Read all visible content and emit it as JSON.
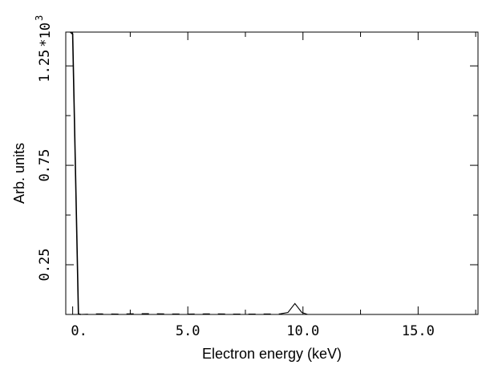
{
  "chart_data": {
    "type": "line",
    "title": "",
    "xlabel": "Electron energy (keV)",
    "ylabel": "Arb. units",
    "y_multiplier_label": "*10",
    "y_multiplier_exponent": "3",
    "xlim": [
      -0.3,
      17.6
    ],
    "ylim": [
      0,
      1.42
    ],
    "x_major_ticks": [
      0,
      5,
      10,
      15
    ],
    "x_tick_labels": [
      "0.",
      "5.0",
      "10.0",
      "15.0"
    ],
    "x_minor_ticks": [
      2.5,
      7.5,
      12.5,
      17.5
    ],
    "y_major_ticks": [
      0.25,
      0.75,
      1.25
    ],
    "y_tick_labels": [
      "0.25",
      "0.75",
      "1.25"
    ],
    "y_minor_ticks": [
      0.5,
      1.0
    ],
    "grid": false,
    "series": [
      {
        "style": "solid",
        "x": [
          -0.1,
          0.0,
          0.25,
          0.35
        ],
        "y": [
          1.42,
          1.41,
          0.002,
          0.0
        ]
      },
      {
        "style": "dashed",
        "x": [
          0.35,
          1.0,
          2.0,
          3.0,
          4.0,
          5.0,
          6.0,
          7.0,
          8.0,
          9.0
        ],
        "y": [
          0.0,
          0.003,
          0.002,
          0.004,
          0.003,
          0.002,
          0.003,
          0.002,
          0.002,
          0.003
        ]
      },
      {
        "style": "solid",
        "x": [
          9.0,
          9.35,
          9.65,
          9.95,
          10.2
        ],
        "y": [
          0.003,
          0.01,
          0.055,
          0.01,
          0.0
        ]
      }
    ]
  }
}
